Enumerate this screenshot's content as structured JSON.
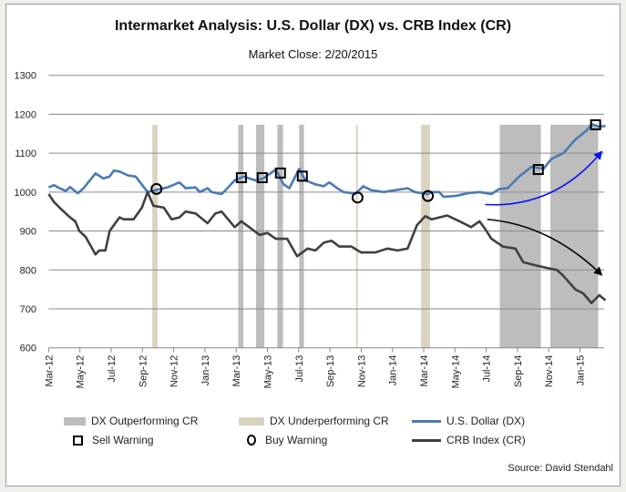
{
  "chart_data": {
    "type": "line",
    "title": "Intermarket Analysis:  U.S. Dollar (DX) vs. CRB Index (CR)",
    "subtitle": "Market Close:  2/20/2015",
    "source": "Source: David Stendahl",
    "ylim": [
      600,
      1300
    ],
    "yticks": [
      600,
      700,
      800,
      900,
      1000,
      1100,
      1200,
      1300
    ],
    "xlim": [
      "2012-03-01",
      "2015-02-20"
    ],
    "xticks": [
      {
        "date": "2012-03-01",
        "label": "Mar-12"
      },
      {
        "date": "2012-05-01",
        "label": "May-12"
      },
      {
        "date": "2012-07-01",
        "label": "Jul-12"
      },
      {
        "date": "2012-09-01",
        "label": "Sep-12"
      },
      {
        "date": "2012-11-01",
        "label": "Nov-12"
      },
      {
        "date": "2013-01-01",
        "label": "Jan-13"
      },
      {
        "date": "2013-03-01",
        "label": "Mar-13"
      },
      {
        "date": "2013-05-01",
        "label": "May-13"
      },
      {
        "date": "2013-07-01",
        "label": "Jul-13"
      },
      {
        "date": "2013-09-01",
        "label": "Sep-13"
      },
      {
        "date": "2013-11-01",
        "label": "Nov-13"
      },
      {
        "date": "2014-01-01",
        "label": "Jan-14"
      },
      {
        "date": "2014-03-01",
        "label": "Mar-14"
      },
      {
        "date": "2014-05-01",
        "label": "May-14"
      },
      {
        "date": "2014-07-01",
        "label": "Jul-14"
      },
      {
        "date": "2014-09-01",
        "label": "Sep-14"
      },
      {
        "date": "2014-11-01",
        "label": "Nov-14"
      },
      {
        "date": "2015-01-01",
        "label": "Jan-15"
      }
    ],
    "grid": true,
    "legend_position": "bottom",
    "colors": {
      "dx": "#4a7ab5",
      "cr": "#404040",
      "outperform": "#bdbdbd",
      "underperform": "#d9d3c0",
      "arrow_up": "#0a14f0",
      "arrow_down": "#000000"
    },
    "series": [
      {
        "name": "U.S. Dollar (DX)",
        "key": "dx",
        "points": [
          [
            "2012-03-01",
            1012
          ],
          [
            "2012-03-11",
            1018
          ],
          [
            "2012-03-22",
            1010
          ],
          [
            "2012-04-04",
            1003
          ],
          [
            "2012-04-12",
            1013
          ],
          [
            "2012-04-27",
            997
          ],
          [
            "2012-05-08",
            1010
          ],
          [
            "2012-06-01",
            1048
          ],
          [
            "2012-06-16",
            1035
          ],
          [
            "2012-06-28",
            1040
          ],
          [
            "2012-07-06",
            1055
          ],
          [
            "2012-07-17",
            1053
          ],
          [
            "2012-08-03",
            1043
          ],
          [
            "2012-08-18",
            1040
          ],
          [
            "2012-09-11",
            1000
          ],
          [
            "2012-09-26",
            1005
          ],
          [
            "2012-10-19",
            1012
          ],
          [
            "2012-11-12",
            1025
          ],
          [
            "2012-11-24",
            1010
          ],
          [
            "2012-12-13",
            1012
          ],
          [
            "2012-12-21",
            1000
          ],
          [
            "2013-01-06",
            1010
          ],
          [
            "2013-01-14",
            1000
          ],
          [
            "2013-02-03",
            995
          ],
          [
            "2013-02-14",
            1010
          ],
          [
            "2013-02-28",
            1030
          ],
          [
            "2013-03-15",
            1040
          ],
          [
            "2013-04-08",
            1030
          ],
          [
            "2013-04-23",
            1035
          ],
          [
            "2013-05-17",
            1058
          ],
          [
            "2013-06-02",
            1020
          ],
          [
            "2013-06-13",
            1010
          ],
          [
            "2013-07-02",
            1060
          ],
          [
            "2013-07-14",
            1030
          ],
          [
            "2013-08-03",
            1020
          ],
          [
            "2013-08-19",
            1015
          ],
          [
            "2013-08-30",
            1025
          ],
          [
            "2013-09-15",
            1010
          ],
          [
            "2013-09-27",
            1000
          ],
          [
            "2013-10-20",
            996
          ],
          [
            "2013-11-05",
            1015
          ],
          [
            "2013-11-20",
            1005
          ],
          [
            "2013-12-14",
            1000
          ],
          [
            "2014-01-07",
            1005
          ],
          [
            "2014-01-30",
            1010
          ],
          [
            "2014-02-14",
            1000
          ],
          [
            "2014-03-08",
            995
          ],
          [
            "2014-03-16",
            1000
          ],
          [
            "2014-04-01",
            1000
          ],
          [
            "2014-04-09",
            988
          ],
          [
            "2014-05-02",
            990
          ],
          [
            "2014-05-25",
            997
          ],
          [
            "2014-06-18",
            1000
          ],
          [
            "2014-07-11",
            995
          ],
          [
            "2014-07-26",
            1008
          ],
          [
            "2014-08-12",
            1010
          ],
          [
            "2014-09-04",
            1040
          ],
          [
            "2014-09-28",
            1065
          ],
          [
            "2014-10-21",
            1060
          ],
          [
            "2014-11-06",
            1085
          ],
          [
            "2014-11-29",
            1100
          ],
          [
            "2014-12-22",
            1135
          ],
          [
            "2015-01-15",
            1160
          ],
          [
            "2015-01-23",
            1175
          ],
          [
            "2015-02-08",
            1168
          ],
          [
            "2015-02-20",
            1170
          ]
        ]
      },
      {
        "name": "CRB Index (CR)",
        "key": "cr",
        "points": [
          [
            "2012-03-01",
            995
          ],
          [
            "2012-03-11",
            975
          ],
          [
            "2012-03-22",
            960
          ],
          [
            "2012-04-12",
            935
          ],
          [
            "2012-04-22",
            925
          ],
          [
            "2012-04-30",
            900
          ],
          [
            "2012-05-12",
            885
          ],
          [
            "2012-06-01",
            840
          ],
          [
            "2012-06-08",
            850
          ],
          [
            "2012-06-20",
            850
          ],
          [
            "2012-06-28",
            900
          ],
          [
            "2012-07-17",
            935
          ],
          [
            "2012-07-25",
            930
          ],
          [
            "2012-08-14",
            930
          ],
          [
            "2012-08-30",
            960
          ],
          [
            "2012-09-11",
            1000
          ],
          [
            "2012-09-22",
            965
          ],
          [
            "2012-10-12",
            960
          ],
          [
            "2012-10-27",
            930
          ],
          [
            "2012-11-12",
            935
          ],
          [
            "2012-11-24",
            950
          ],
          [
            "2012-12-13",
            945
          ],
          [
            "2013-01-06",
            920
          ],
          [
            "2013-01-21",
            945
          ],
          [
            "2013-02-03",
            950
          ],
          [
            "2013-02-28",
            910
          ],
          [
            "2013-03-11",
            925
          ],
          [
            "2013-03-31",
            905
          ],
          [
            "2013-04-16",
            890
          ],
          [
            "2013-05-01",
            895
          ],
          [
            "2013-05-17",
            880
          ],
          [
            "2013-06-09",
            880
          ],
          [
            "2013-06-28",
            835
          ],
          [
            "2013-07-18",
            855
          ],
          [
            "2013-08-03",
            850
          ],
          [
            "2013-08-19",
            870
          ],
          [
            "2013-09-04",
            875
          ],
          [
            "2013-09-19",
            860
          ],
          [
            "2013-10-12",
            860
          ],
          [
            "2013-11-01",
            845
          ],
          [
            "2013-11-28",
            845
          ],
          [
            "2013-12-21",
            855
          ],
          [
            "2014-01-11",
            850
          ],
          [
            "2014-01-30",
            855
          ],
          [
            "2014-02-18",
            915
          ],
          [
            "2014-03-04",
            938
          ],
          [
            "2014-03-16",
            930
          ],
          [
            "2014-04-01",
            935
          ],
          [
            "2014-04-16",
            940
          ],
          [
            "2014-05-10",
            925
          ],
          [
            "2014-06-02",
            910
          ],
          [
            "2014-06-18",
            925
          ],
          [
            "2014-06-29",
            905
          ],
          [
            "2014-07-11",
            880
          ],
          [
            "2014-08-03",
            860
          ],
          [
            "2014-08-27",
            855
          ],
          [
            "2014-09-12",
            820
          ],
          [
            "2014-10-05",
            812
          ],
          [
            "2014-10-28",
            805
          ],
          [
            "2014-11-17",
            800
          ],
          [
            "2014-11-29",
            785
          ],
          [
            "2014-12-22",
            750
          ],
          [
            "2015-01-07",
            740
          ],
          [
            "2015-01-23",
            715
          ],
          [
            "2015-02-08",
            735
          ],
          [
            "2015-02-20",
            722
          ]
        ]
      }
    ],
    "bands": [
      {
        "type": "underperform",
        "from": "2012-09-20",
        "to": "2012-09-30"
      },
      {
        "type": "outperform",
        "from": "2013-03-05",
        "to": "2013-03-15"
      },
      {
        "type": "outperform",
        "from": "2013-04-09",
        "to": "2013-04-25"
      },
      {
        "type": "outperform",
        "from": "2013-05-20",
        "to": "2013-06-01"
      },
      {
        "type": "outperform",
        "from": "2013-07-02",
        "to": "2013-07-11"
      },
      {
        "type": "underperform",
        "from": "2013-10-21",
        "to": "2013-10-24"
      },
      {
        "type": "underperform",
        "from": "2014-02-26",
        "to": "2014-03-13"
      },
      {
        "type": "outperform",
        "from": "2014-07-27",
        "to": "2014-10-16"
      },
      {
        "type": "outperform",
        "from": "2014-11-04",
        "to": "2015-02-06"
      }
    ],
    "band_top": 1173,
    "sell_warnings": [
      [
        "2013-03-11",
        1037
      ],
      [
        "2013-04-21",
        1037
      ],
      [
        "2013-05-26",
        1049
      ],
      [
        "2013-07-08",
        1041
      ],
      [
        "2014-10-11",
        1058
      ],
      [
        "2015-02-01",
        1173
      ]
    ],
    "buy_warnings": [
      [
        "2012-09-28",
        1008
      ],
      [
        "2013-10-24",
        986
      ],
      [
        "2014-03-09",
        990
      ]
    ],
    "annotations": [
      {
        "kind": "arrow-up",
        "from": [
          "2014-06-29",
          968
        ],
        "to": [
          "2015-02-12",
          1103
        ]
      },
      {
        "kind": "arrow-down",
        "from": [
          "2014-07-03",
          930
        ],
        "to": [
          "2015-02-12",
          788
        ]
      }
    ],
    "legend": {
      "outperform": "DX Outperforming CR",
      "underperform": "DX Underperforming CR",
      "dx": "U.S. Dollar (DX)",
      "sell": "Sell Warning",
      "buy": "Buy Warning",
      "cr": "CRB Index (CR)"
    }
  }
}
